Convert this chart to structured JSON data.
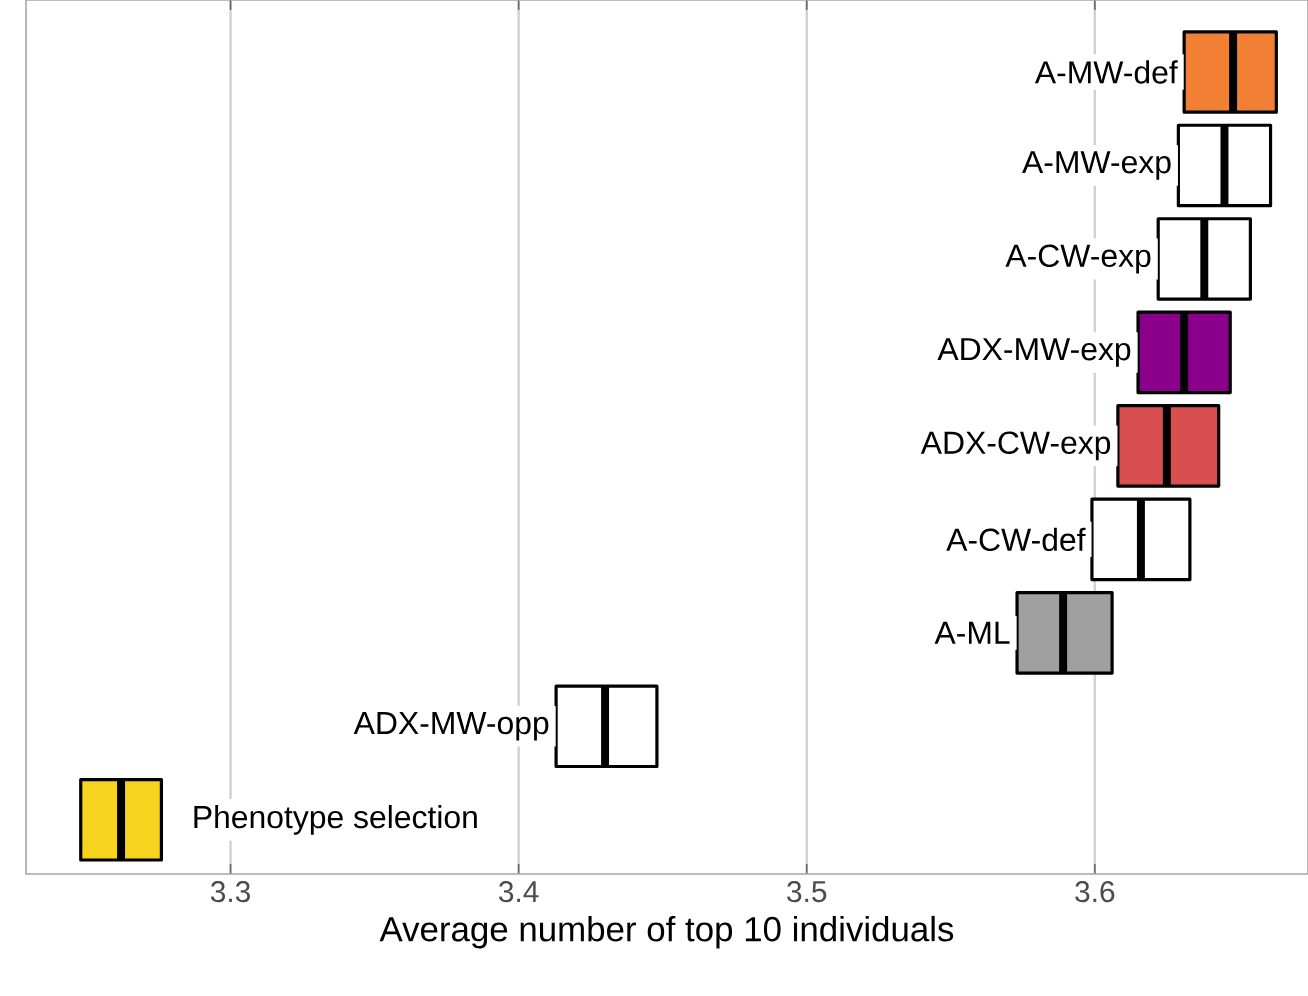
{
  "chart_data": {
    "type": "box",
    "orientation": "horizontal",
    "xlabel": "Average number of top 10 individuals",
    "categories": [
      "A-MW-def",
      "A-MW-exp",
      "A-CW-exp",
      "ADX-MW-exp",
      "ADX-CW-exp",
      "A-CW-def",
      "A-ML",
      "ADX-MW-opp",
      "Phenotype selection"
    ],
    "boxes": [
      {
        "low": 3.631,
        "q1": 3.631,
        "median": 3.648,
        "q3": 3.663,
        "high": 3.663
      },
      {
        "low": 3.629,
        "q1": 3.629,
        "median": 3.645,
        "q3": 3.661,
        "high": 3.661
      },
      {
        "low": 3.622,
        "q1": 3.622,
        "median": 3.638,
        "q3": 3.654,
        "high": 3.654
      },
      {
        "low": 3.615,
        "q1": 3.615,
        "median": 3.631,
        "q3": 3.647,
        "high": 3.647
      },
      {
        "low": 3.608,
        "q1": 3.608,
        "median": 3.625,
        "q3": 3.643,
        "high": 3.643
      },
      {
        "low": 3.599,
        "q1": 3.599,
        "median": 3.616,
        "q3": 3.633,
        "high": 3.633
      },
      {
        "low": 3.573,
        "q1": 3.573,
        "median": 3.589,
        "q3": 3.606,
        "high": 3.606
      },
      {
        "low": 3.413,
        "q1": 3.413,
        "median": 3.43,
        "q3": 3.448,
        "high": 3.448
      },
      {
        "low": 3.248,
        "q1": 3.248,
        "median": 3.262,
        "q3": 3.276,
        "high": 3.276
      }
    ],
    "colors": [
      "#f28034",
      "#ffffff",
      "#ffffff",
      "#8b008b",
      "#d94f4f",
      "#ffffff",
      "#a0a0a0",
      "#ffffff",
      "#f5d31e"
    ],
    "xlim": [
      3.229,
      3.674
    ],
    "xticks": [
      3.3,
      3.4,
      3.5,
      3.6
    ],
    "grid": "x",
    "tick_labels": "x"
  }
}
